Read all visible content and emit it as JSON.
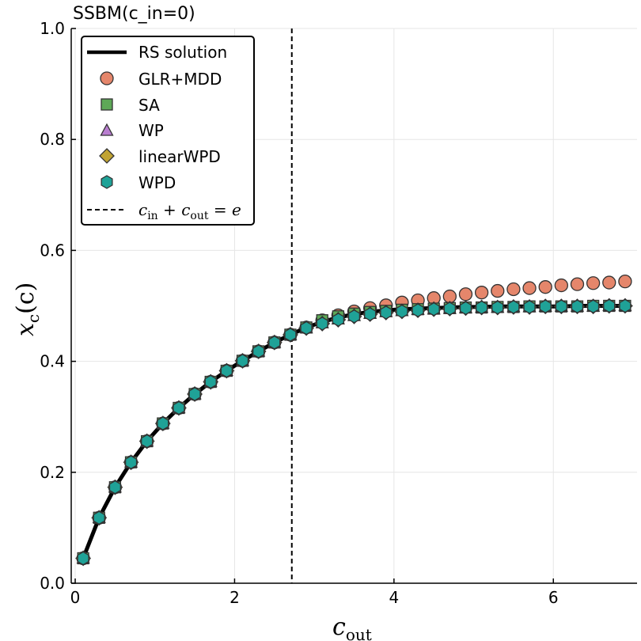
{
  "chart_data": {
    "type": "scatter",
    "title": "SSBM(c_in=0)",
    "xlabel": "c",
    "xlabel_sub": "out",
    "ylabel": "x",
    "ylabel_sub": "c",
    "ylabel_suffix": "(c)",
    "xlim": [
      -0.05,
      7.05
    ],
    "ylim": [
      0,
      1.0
    ],
    "xticks": [
      0,
      2,
      4,
      6
    ],
    "xtick_labels": [
      "0",
      "2",
      "4",
      "6"
    ],
    "yticks": [
      0,
      0.2,
      0.4,
      0.6,
      0.8,
      1.0
    ],
    "ytick_labels": [
      "0.0",
      "0.2",
      "0.4",
      "0.6",
      "0.8",
      "1.0"
    ],
    "grid": true,
    "legend_position": "top-left",
    "vline": {
      "x": 2.718,
      "label_parts": [
        "c",
        "in",
        " + ",
        "c",
        "out",
        " = ",
        "e"
      ],
      "color": "#000000"
    },
    "rs_solution": {
      "name": "RS solution",
      "color": "#000000",
      "x": [
        0.1,
        0.3,
        0.5,
        0.7,
        0.9,
        1.1,
        1.3,
        1.5,
        1.7,
        1.9,
        2.1,
        2.3,
        2.5,
        2.7,
        2.9,
        3.1,
        3.3,
        3.5,
        3.7,
        3.9,
        4.1,
        4.3,
        4.5,
        4.7,
        4.9,
        5.1,
        5.3,
        5.5,
        5.7,
        5.9,
        6.1,
        6.3,
        6.5,
        6.7,
        6.9
      ],
      "y": [
        0.045,
        0.118,
        0.173,
        0.218,
        0.256,
        0.288,
        0.316,
        0.341,
        0.363,
        0.383,
        0.401,
        0.418,
        0.434,
        0.448,
        0.461,
        0.471,
        0.479,
        0.485,
        0.489,
        0.492,
        0.494,
        0.495,
        0.496,
        0.497,
        0.498,
        0.498,
        0.499,
        0.499,
        0.499,
        0.499,
        0.499,
        0.5,
        0.5,
        0.5,
        0.5
      ]
    },
    "series": [
      {
        "name": "GLR+MDD",
        "marker": "circle",
        "color": "#e5866b",
        "x": [
          0.1,
          0.3,
          0.5,
          0.7,
          0.9,
          1.1,
          1.3,
          1.5,
          1.7,
          1.9,
          2.1,
          2.3,
          2.5,
          2.7,
          2.9,
          3.1,
          3.3,
          3.5,
          3.7,
          3.9,
          4.1,
          4.3,
          4.5,
          4.7,
          4.9,
          5.1,
          5.3,
          5.5,
          5.7,
          5.9,
          6.1,
          6.3,
          6.5,
          6.7,
          6.9
        ],
        "y": [
          0.045,
          0.118,
          0.173,
          0.218,
          0.256,
          0.288,
          0.316,
          0.341,
          0.363,
          0.383,
          0.401,
          0.418,
          0.434,
          0.448,
          0.461,
          0.474,
          0.483,
          0.49,
          0.496,
          0.501,
          0.506,
          0.51,
          0.514,
          0.517,
          0.521,
          0.524,
          0.527,
          0.53,
          0.532,
          0.534,
          0.537,
          0.539,
          0.541,
          0.542,
          0.544
        ]
      },
      {
        "name": "SA",
        "marker": "square",
        "color": "#5ea857",
        "x": [
          0.1,
          0.3,
          0.5,
          0.7,
          0.9,
          1.1,
          1.3,
          1.5,
          1.7,
          1.9,
          2.1,
          2.3,
          2.5,
          2.7,
          2.9,
          3.1,
          3.3,
          3.5,
          3.7,
          3.9,
          4.1,
          4.3,
          4.5,
          4.7,
          4.9,
          5.1,
          5.3,
          5.5,
          5.7,
          5.9,
          6.1,
          6.3,
          6.5,
          6.7,
          6.9
        ],
        "y": [
          0.045,
          0.118,
          0.173,
          0.218,
          0.256,
          0.288,
          0.316,
          0.341,
          0.363,
          0.383,
          0.401,
          0.418,
          0.434,
          0.448,
          0.461,
          0.474,
          0.481,
          0.486,
          0.489,
          0.491,
          0.493,
          0.494,
          0.495,
          0.496,
          0.497,
          0.497,
          0.498,
          0.498,
          0.499,
          0.499,
          0.499,
          0.499,
          0.5,
          0.5,
          0.5
        ]
      },
      {
        "name": "WP",
        "marker": "triangle",
        "color": "#b97ed0",
        "x": [
          0.1,
          0.3,
          0.5,
          0.7,
          0.9,
          1.1,
          1.3,
          1.5,
          1.7,
          1.9,
          2.1,
          2.3,
          2.5,
          2.7,
          2.9,
          3.1,
          3.3,
          3.5,
          3.7,
          3.9,
          4.1,
          4.3,
          4.5,
          4.7,
          4.9,
          5.1,
          5.3,
          5.5,
          5.7,
          5.9,
          6.1,
          6.3,
          6.5,
          6.7,
          6.9
        ],
        "y": [
          0.045,
          0.118,
          0.173,
          0.218,
          0.256,
          0.288,
          0.316,
          0.341,
          0.363,
          0.383,
          0.401,
          0.418,
          0.434,
          0.448,
          0.46,
          0.469,
          0.476,
          0.482,
          0.486,
          0.489,
          0.491,
          0.493,
          0.494,
          0.495,
          0.496,
          0.497,
          0.497,
          0.498,
          0.498,
          0.499,
          0.499,
          0.499,
          0.499,
          0.5,
          0.5
        ]
      },
      {
        "name": "linearWPD",
        "marker": "diamond",
        "color": "#c1a433",
        "x": [
          0.1,
          0.3,
          0.5,
          0.7,
          0.9,
          1.1,
          1.3,
          1.5,
          1.7,
          1.9,
          2.1,
          2.3,
          2.5,
          2.7,
          2.9,
          3.1,
          3.3,
          3.5,
          3.7,
          3.9,
          4.1,
          4.3,
          4.5,
          4.7,
          4.9,
          5.1,
          5.3,
          5.5,
          5.7,
          5.9,
          6.1,
          6.3,
          6.5,
          6.7,
          6.9
        ],
        "y": [
          0.045,
          0.118,
          0.173,
          0.218,
          0.256,
          0.288,
          0.316,
          0.341,
          0.363,
          0.383,
          0.401,
          0.418,
          0.434,
          0.448,
          0.46,
          0.468,
          0.475,
          0.481,
          0.485,
          0.488,
          0.49,
          0.492,
          0.494,
          0.495,
          0.496,
          0.497,
          0.497,
          0.498,
          0.498,
          0.499,
          0.499,
          0.499,
          0.499,
          0.5,
          0.5
        ]
      },
      {
        "name": "WPD",
        "marker": "hexagon",
        "color": "#1fa297",
        "x": [
          0.1,
          0.3,
          0.5,
          0.7,
          0.9,
          1.1,
          1.3,
          1.5,
          1.7,
          1.9,
          2.1,
          2.3,
          2.5,
          2.7,
          2.9,
          3.1,
          3.3,
          3.5,
          3.7,
          3.9,
          4.1,
          4.3,
          4.5,
          4.7,
          4.9,
          5.1,
          5.3,
          5.5,
          5.7,
          5.9,
          6.1,
          6.3,
          6.5,
          6.7,
          6.9
        ],
        "y": [
          0.045,
          0.118,
          0.173,
          0.218,
          0.256,
          0.288,
          0.316,
          0.341,
          0.363,
          0.383,
          0.401,
          0.418,
          0.434,
          0.448,
          0.46,
          0.468,
          0.475,
          0.481,
          0.485,
          0.488,
          0.49,
          0.492,
          0.494,
          0.495,
          0.496,
          0.497,
          0.497,
          0.498,
          0.498,
          0.499,
          0.499,
          0.499,
          0.499,
          0.5,
          0.5
        ]
      }
    ]
  }
}
